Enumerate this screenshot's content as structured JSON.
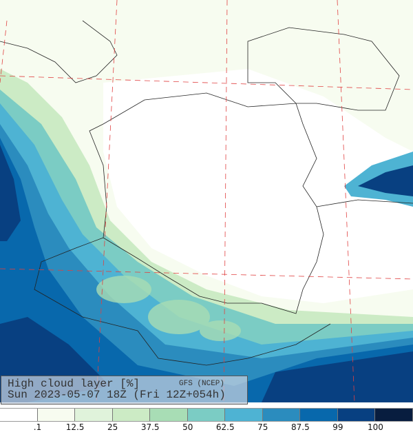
{
  "title": "High cloud layer  [%]",
  "source": "GFS (NCEP)",
  "valid_time": "Sun 2023-05-07 18Z (Fri 12Z+054h)",
  "legend": {
    "colors": [
      "#ffffff",
      "#f7fcf0",
      "#e0f3db",
      "#ccebc5",
      "#a8ddb5",
      "#7bccc4",
      "#4eb3d3",
      "#2b8cbe",
      "#0868ac",
      "#084081",
      "#081d3f"
    ],
    "labels": [
      ".1",
      "12.5",
      "25",
      "37.5",
      "50",
      "62.5",
      "75",
      "87.5",
      "99",
      "100"
    ]
  }
}
